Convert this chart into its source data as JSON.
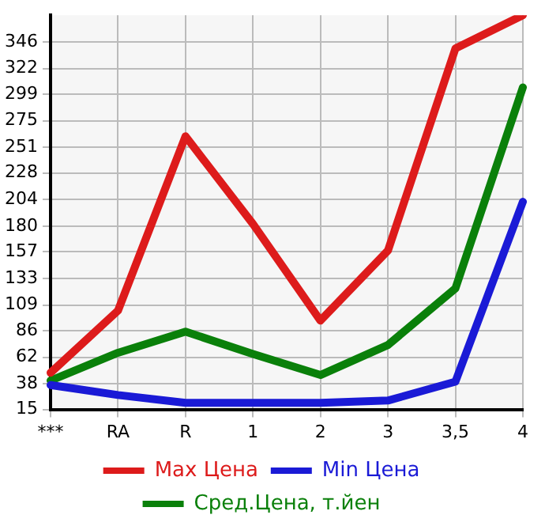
{
  "chart_data": {
    "type": "line",
    "categories": [
      "***",
      "RA",
      "R",
      "1",
      "2",
      "3",
      "3,5",
      "4"
    ],
    "series": [
      {
        "name": "Max Цена",
        "color": "#dd1b1b",
        "values": [
          48,
          104,
          261,
          182,
          95,
          158,
          340,
          370
        ]
      },
      {
        "name": "Min Цена",
        "color": "#1a1ad6",
        "values": [
          37,
          28,
          21,
          21,
          21,
          23,
          40,
          202
        ]
      },
      {
        "name": "Сред.Цена, т.йен",
        "color": "#0a800a",
        "values": [
          41,
          66,
          85,
          65,
          46,
          73,
          124,
          305
        ]
      }
    ],
    "ylim": [
      15,
      370
    ],
    "yticks": [
      15,
      38,
      62,
      86,
      109,
      133,
      157,
      180,
      204,
      228,
      251,
      275,
      299,
      322,
      346
    ],
    "grid": true,
    "legend": "bottom",
    "marker": "none",
    "line_style": "solid"
  }
}
